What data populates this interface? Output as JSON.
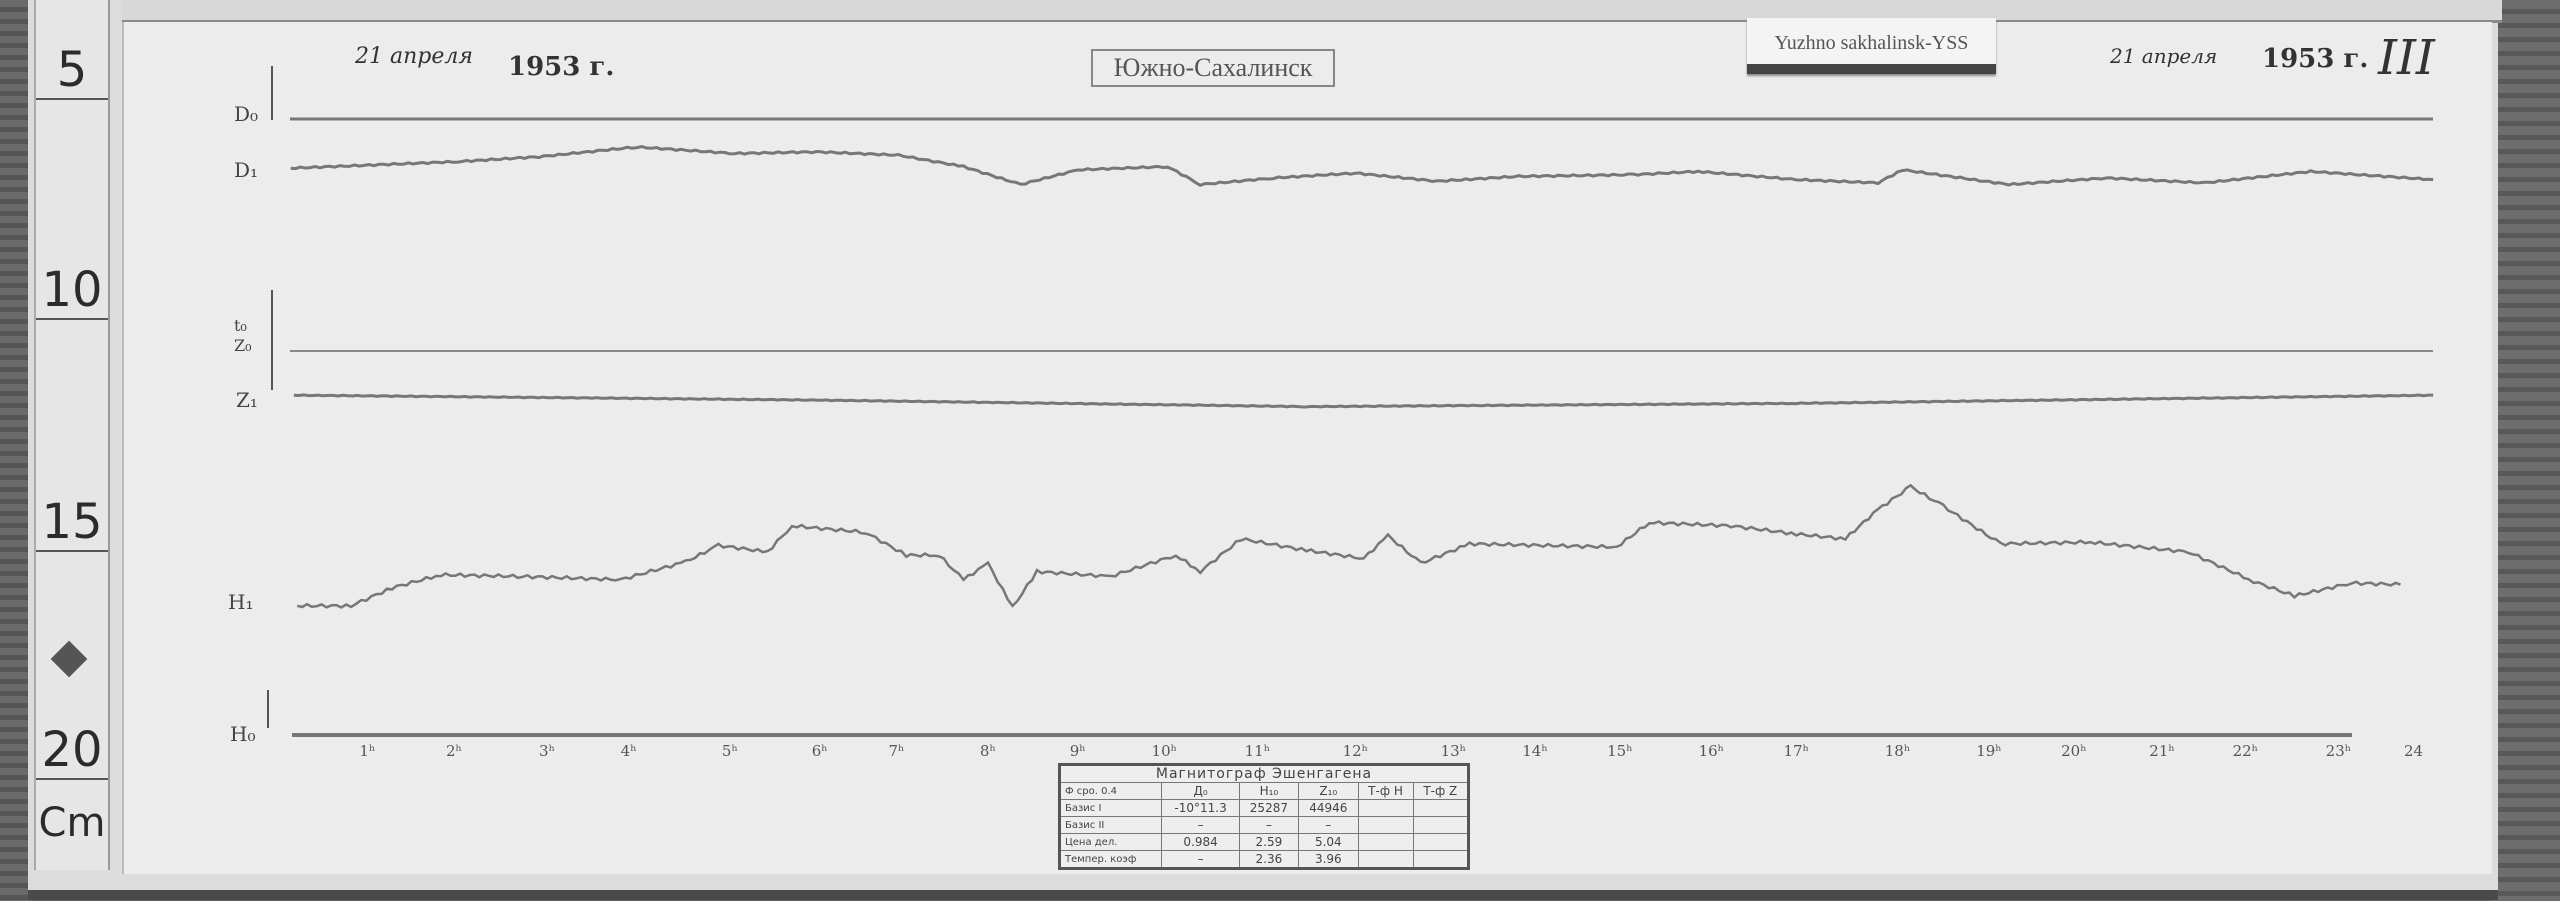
{
  "ruler": {
    "marks": [
      "5",
      "10",
      "15",
      "20"
    ],
    "unit": "Cm"
  },
  "header": {
    "date_left": "21 апреля",
    "year_left": "1953 г.",
    "station": "Южно-Сахалинск",
    "tag": "Yuzhno sakhalinsk-YSS",
    "date_right": "21 апреля",
    "year_right": "1953 г.",
    "sheet_mark": "III"
  },
  "trace_labels": {
    "d0": "D₀",
    "d1": "D₁",
    "t0": "t₀",
    "z0": "Z₀",
    "z1": "Z₁",
    "h1": "H₁",
    "h0": "H₀"
  },
  "hours": [
    "1ʰ",
    "2ʰ",
    "3ʰ",
    "4ʰ",
    "5ʰ",
    "6ʰ",
    "7ʰ",
    "8ʰ",
    "9ʰ",
    "10ʰ",
    "11ʰ",
    "12ʰ",
    "13ʰ",
    "14ʰ",
    "15ʰ",
    "16ʰ",
    "17ʰ",
    "18ʰ",
    "19ʰ",
    "20ʰ",
    "21ʰ",
    "22ʰ",
    "23ʰ",
    "24"
  ],
  "legend_table": {
    "title": "Магнитограф Эшенгагена",
    "header": [
      "Ф сро. 0.4",
      "Д₀",
      "H₁₀",
      "Z₁₀",
      "Т-ф H",
      "Т-ф Z"
    ],
    "rows": [
      [
        "Базис I",
        "-10°11.3",
        "25287",
        "44946",
        "",
        ""
      ],
      [
        "Базис II",
        "–",
        "–",
        "–",
        "",
        ""
      ],
      [
        "Цена дел.",
        "0.984",
        "2.59",
        "5.04",
        "",
        ""
      ],
      [
        "Темпер. коэф",
        "–",
        "2.36",
        "3.96",
        "",
        ""
      ]
    ]
  }
}
